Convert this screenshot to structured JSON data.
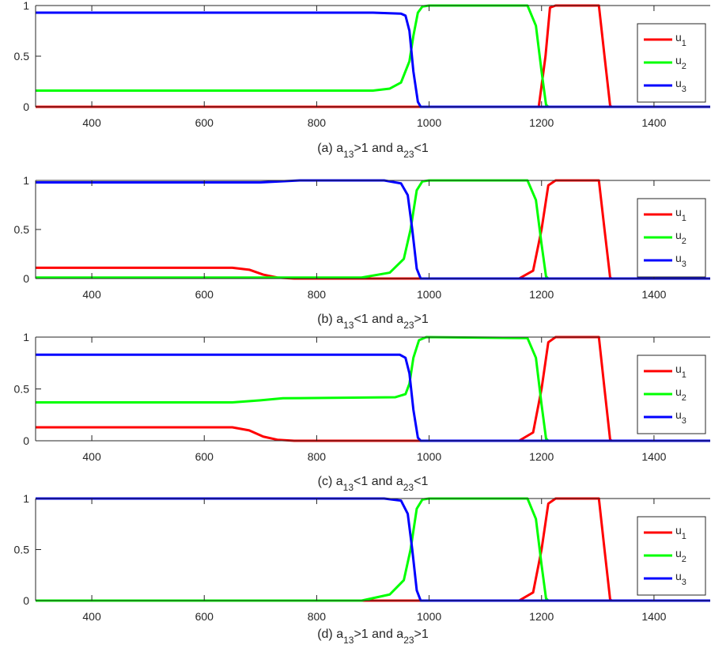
{
  "figure": {
    "colors": {
      "u1": "#ff0000",
      "u2": "#00ff00",
      "u3": "#0000ff",
      "axis": "#262626"
    }
  },
  "chart_data": [
    {
      "type": "line",
      "caption": {
        "prefix": "(a) a",
        "sub1": "13",
        "mid": ">1 and a",
        "sub2": "23",
        "suffix": "<1"
      },
      "xlim": [
        300,
        1500
      ],
      "ylim": [
        0,
        1
      ],
      "xticks": [
        400,
        600,
        800,
        1000,
        1200,
        1400
      ],
      "xtick_labels": [
        "400",
        "600",
        "800",
        "1000",
        "1200",
        "1400"
      ],
      "yticks": [
        0,
        0.5,
        1
      ],
      "ytick_labels": [
        "0",
        "0.5",
        "1"
      ],
      "grid": false,
      "legend": "right",
      "series": [
        {
          "name": "u",
          "sub": "1",
          "color": "#ff0000",
          "points": [
            [
              300,
              0
            ],
            [
              1195,
              0
            ],
            [
              1207,
              0.5
            ],
            [
              1215,
              0.98
            ],
            [
              1225,
              1
            ],
            [
              1302,
              1
            ],
            [
              1312,
              0.5
            ],
            [
              1322,
              0.01
            ],
            [
              1325,
              0
            ],
            [
              1500,
              0
            ]
          ]
        },
        {
          "name": "u",
          "sub": "2",
          "color": "#00ff00",
          "points": [
            [
              300,
              0.16
            ],
            [
              900,
              0.16
            ],
            [
              930,
              0.18
            ],
            [
              950,
              0.24
            ],
            [
              965,
              0.45
            ],
            [
              972,
              0.7
            ],
            [
              980,
              0.93
            ],
            [
              988,
              0.99
            ],
            [
              1000,
              1
            ],
            [
              1175,
              1
            ],
            [
              1190,
              0.8
            ],
            [
              1200,
              0.35
            ],
            [
              1208,
              0.02
            ],
            [
              1212,
              0
            ],
            [
              1500,
              0
            ]
          ]
        },
        {
          "name": "u",
          "sub": "3",
          "color": "#0000ff",
          "points": [
            [
              300,
              0.93
            ],
            [
              900,
              0.93
            ],
            [
              950,
              0.92
            ],
            [
              958,
              0.9
            ],
            [
              965,
              0.75
            ],
            [
              972,
              0.35
            ],
            [
              980,
              0.05
            ],
            [
              985,
              0
            ],
            [
              1500,
              0
            ]
          ]
        }
      ]
    },
    {
      "type": "line",
      "caption": {
        "prefix": "(b) a",
        "sub1": "13",
        "mid": "<1 and a",
        "sub2": "23",
        "suffix": ">1"
      },
      "xlim": [
        300,
        1500
      ],
      "ylim": [
        0,
        1
      ],
      "xticks": [
        400,
        600,
        800,
        1000,
        1200,
        1400
      ],
      "xtick_labels": [
        "400",
        "600",
        "800",
        "1000",
        "1200",
        "1400"
      ],
      "yticks": [
        0,
        0.5,
        1
      ],
      "ytick_labels": [
        "0",
        "0.5",
        "1"
      ],
      "grid": false,
      "legend": "right",
      "series": [
        {
          "name": "u",
          "sub": "1",
          "color": "#ff0000",
          "points": [
            [
              300,
              0.11
            ],
            [
              650,
              0.11
            ],
            [
              680,
              0.09
            ],
            [
              705,
              0.04
            ],
            [
              730,
              0.01
            ],
            [
              760,
              0
            ],
            [
              1160,
              0
            ],
            [
              1185,
              0.08
            ],
            [
              1200,
              0.5
            ],
            [
              1212,
              0.95
            ],
            [
              1225,
              1
            ],
            [
              1302,
              1
            ],
            [
              1312,
              0.5
            ],
            [
              1322,
              0.01
            ],
            [
              1325,
              0
            ],
            [
              1500,
              0
            ]
          ]
        },
        {
          "name": "u",
          "sub": "2",
          "color": "#00ff00",
          "points": [
            [
              300,
              0.01
            ],
            [
              880,
              0.01
            ],
            [
              930,
              0.06
            ],
            [
              955,
              0.2
            ],
            [
              967,
              0.5
            ],
            [
              978,
              0.9
            ],
            [
              988,
              0.99
            ],
            [
              1000,
              1
            ],
            [
              1175,
              1
            ],
            [
              1190,
              0.8
            ],
            [
              1200,
              0.35
            ],
            [
              1208,
              0.02
            ],
            [
              1212,
              0
            ],
            [
              1500,
              0
            ]
          ]
        },
        {
          "name": "u",
          "sub": "3",
          "color": "#0000ff",
          "points": [
            [
              300,
              0.98
            ],
            [
              700,
              0.98
            ],
            [
              770,
              1
            ],
            [
              920,
              1
            ],
            [
              950,
              0.97
            ],
            [
              962,
              0.85
            ],
            [
              970,
              0.5
            ],
            [
              978,
              0.1
            ],
            [
              985,
              0
            ],
            [
              1500,
              0
            ]
          ]
        }
      ]
    },
    {
      "type": "line",
      "caption": {
        "prefix": "(c) a",
        "sub1": "13",
        "mid": "<1 and a",
        "sub2": "23",
        "suffix": "<1"
      },
      "xlim": [
        300,
        1500
      ],
      "ylim": [
        0,
        1
      ],
      "xticks": [
        400,
        600,
        800,
        1000,
        1200,
        1400
      ],
      "xtick_labels": [
        "400",
        "600",
        "800",
        "1000",
        "1200",
        "1400"
      ],
      "yticks": [
        0,
        0.5,
        1
      ],
      "ytick_labels": [
        "0",
        "0.5",
        "1"
      ],
      "grid": false,
      "legend": "right",
      "series": [
        {
          "name": "u",
          "sub": "1",
          "color": "#ff0000",
          "points": [
            [
              300,
              0.13
            ],
            [
              650,
              0.13
            ],
            [
              680,
              0.1
            ],
            [
              705,
              0.04
            ],
            [
              730,
              0.01
            ],
            [
              760,
              0
            ],
            [
              1160,
              0
            ],
            [
              1185,
              0.08
            ],
            [
              1200,
              0.5
            ],
            [
              1212,
              0.95
            ],
            [
              1225,
              1
            ],
            [
              1302,
              1
            ],
            [
              1312,
              0.5
            ],
            [
              1322,
              0.01
            ],
            [
              1325,
              0
            ],
            [
              1500,
              0
            ]
          ]
        },
        {
          "name": "u",
          "sub": "2",
          "color": "#00ff00",
          "points": [
            [
              300,
              0.37
            ],
            [
              650,
              0.37
            ],
            [
              700,
              0.39
            ],
            [
              740,
              0.41
            ],
            [
              940,
              0.42
            ],
            [
              958,
              0.45
            ],
            [
              965,
              0.55
            ],
            [
              972,
              0.8
            ],
            [
              982,
              0.97
            ],
            [
              995,
              1
            ],
            [
              1175,
              0.99
            ],
            [
              1190,
              0.8
            ],
            [
              1200,
              0.35
            ],
            [
              1208,
              0.02
            ],
            [
              1212,
              0
            ],
            [
              1500,
              0
            ]
          ]
        },
        {
          "name": "u",
          "sub": "3",
          "color": "#0000ff",
          "points": [
            [
              300,
              0.83
            ],
            [
              900,
              0.83
            ],
            [
              948,
              0.83
            ],
            [
              958,
              0.8
            ],
            [
              965,
              0.65
            ],
            [
              972,
              0.3
            ],
            [
              980,
              0.03
            ],
            [
              985,
              0
            ],
            [
              1500,
              0
            ]
          ]
        }
      ]
    },
    {
      "type": "line",
      "caption": {
        "prefix": "(d) a",
        "sub1": "13",
        "mid": ">1 and a",
        "sub2": "23",
        "suffix": ">1"
      },
      "xlim": [
        300,
        1500
      ],
      "ylim": [
        0,
        1
      ],
      "xticks": [
        400,
        600,
        800,
        1000,
        1200,
        1400
      ],
      "xtick_labels": [
        "400",
        "600",
        "800",
        "1000",
        "1200",
        "1400"
      ],
      "yticks": [
        0,
        0.5,
        1
      ],
      "ytick_labels": [
        "0",
        "0.5",
        "1"
      ],
      "grid": false,
      "legend": "right",
      "series": [
        {
          "name": "u",
          "sub": "1",
          "color": "#ff0000",
          "points": [
            [
              300,
              0
            ],
            [
              1160,
              0
            ],
            [
              1185,
              0.08
            ],
            [
              1200,
              0.5
            ],
            [
              1212,
              0.95
            ],
            [
              1225,
              1
            ],
            [
              1302,
              1
            ],
            [
              1312,
              0.5
            ],
            [
              1322,
              0.01
            ],
            [
              1325,
              0
            ],
            [
              1500,
              0
            ]
          ]
        },
        {
          "name": "u",
          "sub": "2",
          "color": "#00ff00",
          "points": [
            [
              300,
              0
            ],
            [
              880,
              0
            ],
            [
              930,
              0.06
            ],
            [
              955,
              0.2
            ],
            [
              967,
              0.5
            ],
            [
              978,
              0.9
            ],
            [
              988,
              0.99
            ],
            [
              1000,
              1
            ],
            [
              1175,
              1
            ],
            [
              1190,
              0.8
            ],
            [
              1200,
              0.35
            ],
            [
              1208,
              0.02
            ],
            [
              1212,
              0
            ],
            [
              1500,
              0
            ]
          ]
        },
        {
          "name": "u",
          "sub": "3",
          "color": "#0000ff",
          "points": [
            [
              300,
              1
            ],
            [
              920,
              1
            ],
            [
              950,
              0.98
            ],
            [
              962,
              0.85
            ],
            [
              970,
              0.5
            ],
            [
              978,
              0.1
            ],
            [
              985,
              0
            ],
            [
              1500,
              0
            ]
          ]
        }
      ]
    }
  ]
}
